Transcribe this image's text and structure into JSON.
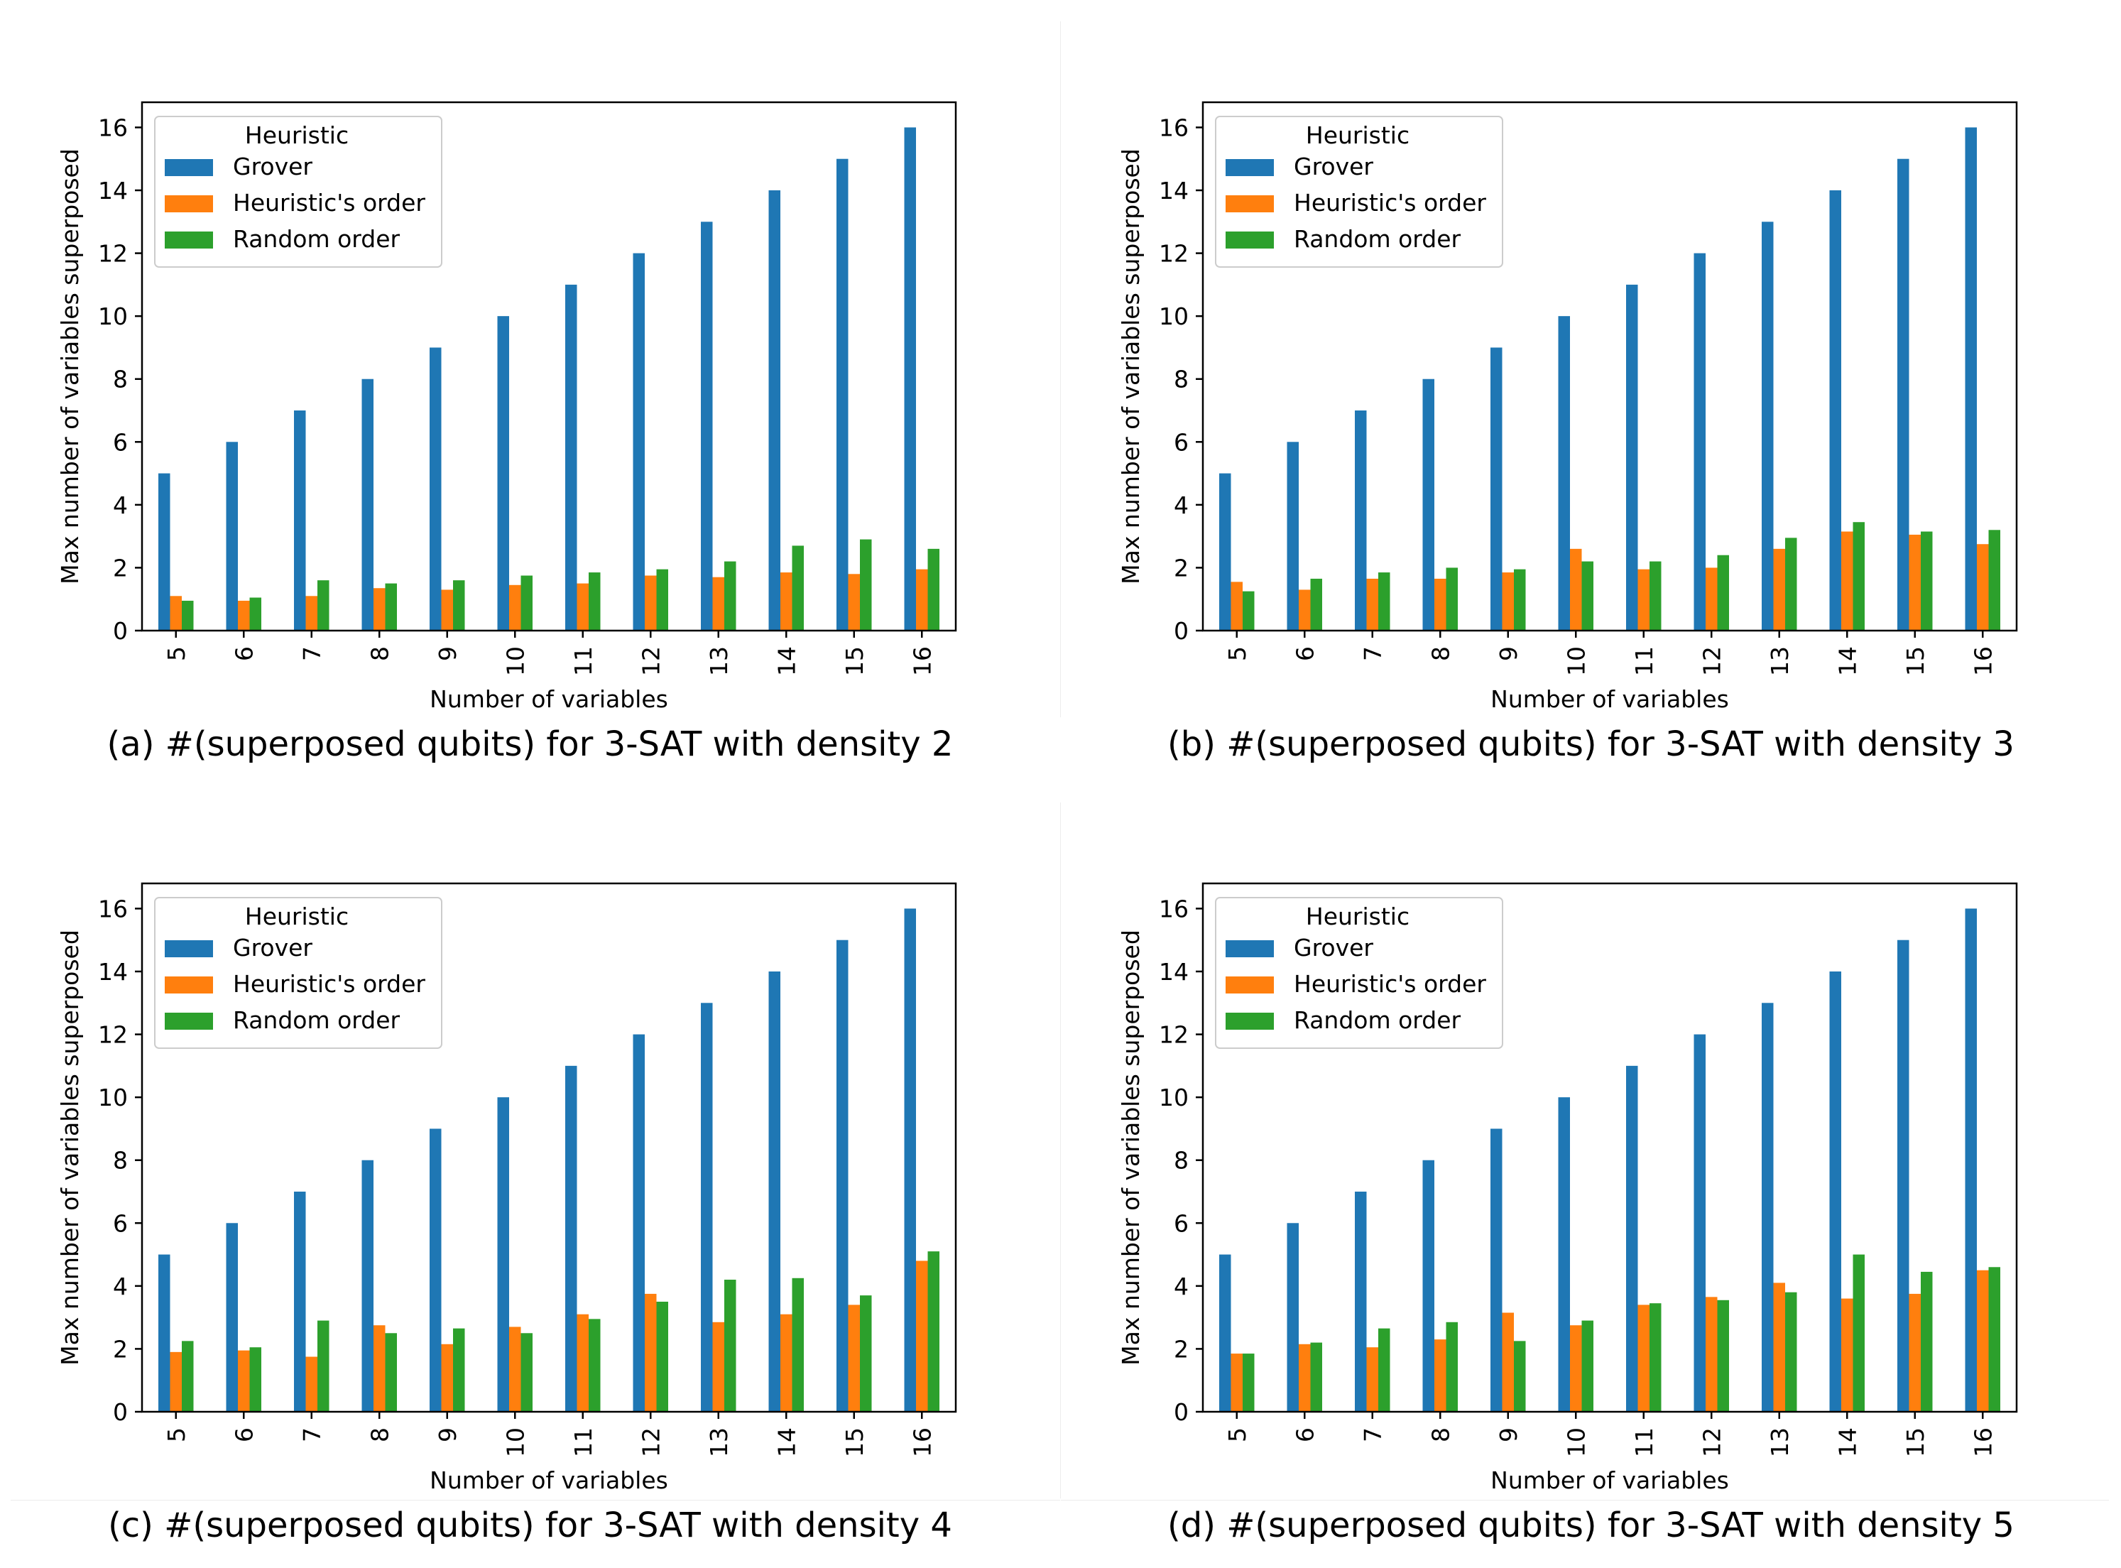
{
  "colors": {
    "grover": "#1f77b4",
    "heuristic": "#ff7f0e",
    "random": "#2ca02c"
  },
  "chart_data": [
    {
      "type": "bar",
      "caption": "(a) #(superposed qubits) for 3-SAT with density 2",
      "xlabel": "Number of variables",
      "ylabel": "Max number of variables superposed",
      "ylim": [
        0,
        16.8
      ],
      "yticks": [
        "0",
        "2",
        "4",
        "6",
        "8",
        "10",
        "12",
        "14",
        "16"
      ],
      "categories": [
        "5",
        "6",
        "7",
        "8",
        "9",
        "10",
        "11",
        "12",
        "13",
        "14",
        "15",
        "16"
      ],
      "legend": {
        "title": "Heuristic",
        "placement": "upper-left"
      },
      "series": [
        {
          "name": "Grover",
          "values": [
            5,
            6,
            7,
            8,
            9,
            10,
            11,
            12,
            13,
            14,
            15,
            16
          ]
        },
        {
          "name": "Heuristic's order",
          "values": [
            1.1,
            0.95,
            1.1,
            1.35,
            1.3,
            1.45,
            1.5,
            1.75,
            1.7,
            1.85,
            1.8,
            1.95
          ]
        },
        {
          "name": "Random order",
          "values": [
            0.95,
            1.05,
            1.6,
            1.5,
            1.6,
            1.75,
            1.85,
            1.95,
            2.2,
            2.7,
            2.9,
            2.6
          ]
        }
      ]
    },
    {
      "type": "bar",
      "caption": "(b) #(superposed qubits) for 3-SAT with density 3",
      "xlabel": "Number of variables",
      "ylabel": "Max number of variables superposed",
      "ylim": [
        0,
        16.8
      ],
      "yticks": [
        "0",
        "2",
        "4",
        "6",
        "8",
        "10",
        "12",
        "14",
        "16"
      ],
      "categories": [
        "5",
        "6",
        "7",
        "8",
        "9",
        "10",
        "11",
        "12",
        "13",
        "14",
        "15",
        "16"
      ],
      "legend": {
        "title": "Heuristic",
        "placement": "upper-left"
      },
      "series": [
        {
          "name": "Grover",
          "values": [
            5,
            6,
            7,
            8,
            9,
            10,
            11,
            12,
            13,
            14,
            15,
            16
          ]
        },
        {
          "name": "Heuristic's order",
          "values": [
            1.55,
            1.3,
            1.65,
            1.65,
            1.85,
            2.6,
            1.95,
            2.0,
            2.6,
            3.15,
            3.05,
            2.75
          ]
        },
        {
          "name": "Random order",
          "values": [
            1.25,
            1.65,
            1.85,
            2.0,
            1.95,
            2.2,
            2.2,
            2.4,
            2.95,
            3.45,
            3.15,
            3.2
          ]
        }
      ]
    },
    {
      "type": "bar",
      "caption": "(c) #(superposed qubits) for 3-SAT with density 4",
      "xlabel": "Number of variables",
      "ylabel": "Max number of variables superposed",
      "ylim": [
        0,
        16.8
      ],
      "yticks": [
        "0",
        "2",
        "4",
        "6",
        "8",
        "10",
        "12",
        "14",
        "16"
      ],
      "categories": [
        "5",
        "6",
        "7",
        "8",
        "9",
        "10",
        "11",
        "12",
        "13",
        "14",
        "15",
        "16"
      ],
      "legend": {
        "title": "Heuristic",
        "placement": "upper-left"
      },
      "series": [
        {
          "name": "Grover",
          "values": [
            5,
            6,
            7,
            8,
            9,
            10,
            11,
            12,
            13,
            14,
            15,
            16
          ]
        },
        {
          "name": "Heuristic's order",
          "values": [
            1.9,
            1.95,
            1.75,
            2.75,
            2.15,
            2.7,
            3.1,
            3.75,
            2.85,
            3.1,
            3.4,
            4.8
          ]
        },
        {
          "name": "Random order",
          "values": [
            2.25,
            2.05,
            2.9,
            2.5,
            2.65,
            2.5,
            2.95,
            3.5,
            4.2,
            4.25,
            3.7,
            5.1
          ]
        }
      ]
    },
    {
      "type": "bar",
      "caption": "(d) #(superposed qubits) for 3-SAT with density 5",
      "xlabel": "Number of variables",
      "ylabel": "Max number of variables superposed",
      "ylim": [
        0,
        16.8
      ],
      "yticks": [
        "0",
        "2",
        "4",
        "6",
        "8",
        "10",
        "12",
        "14",
        "16"
      ],
      "categories": [
        "5",
        "6",
        "7",
        "8",
        "9",
        "10",
        "11",
        "12",
        "13",
        "14",
        "15",
        "16"
      ],
      "legend": {
        "title": "Heuristic",
        "placement": "upper-left"
      },
      "series": [
        {
          "name": "Grover",
          "values": [
            5,
            6,
            7,
            8,
            9,
            10,
            11,
            12,
            13,
            14,
            15,
            16
          ]
        },
        {
          "name": "Heuristic's order",
          "values": [
            1.85,
            2.15,
            2.05,
            2.3,
            3.15,
            2.75,
            3.4,
            3.65,
            4.1,
            3.6,
            3.75,
            4.5
          ]
        },
        {
          "name": "Random order",
          "values": [
            1.85,
            2.2,
            2.65,
            2.85,
            2.25,
            2.9,
            3.45,
            3.55,
            3.8,
            5.0,
            4.45,
            4.6
          ]
        }
      ]
    }
  ]
}
